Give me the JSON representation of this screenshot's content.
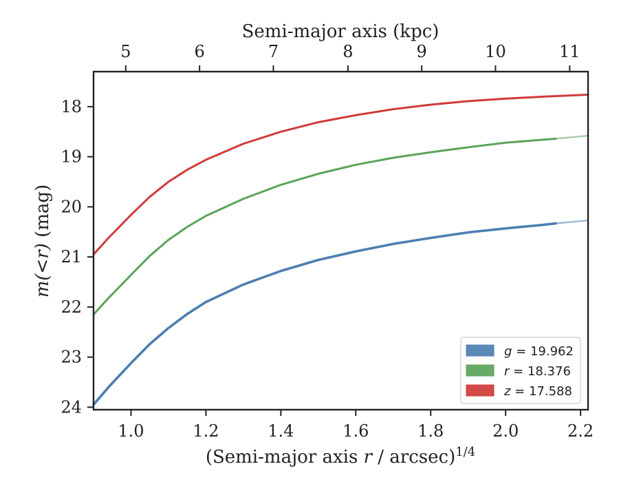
{
  "chart_data": {
    "type": "line",
    "xlabel": "(Semi-major axis r / arcsec)",
    "xlabel_parts": {
      "before": "(Semi-major axis ",
      "var": "r",
      "after": " / arcsec)",
      "sup": "1/4"
    },
    "ylabel": "m(<r) (mag)",
    "ylabel_parts": {
      "math": "m(<r)",
      "unit": " (mag)"
    },
    "top_xlabel": "Semi-major axis (kpc)",
    "xlim": [
      0.9,
      2.22
    ],
    "ylim": [
      24.05,
      17.3
    ],
    "x_ticks": [
      1.0,
      1.2,
      1.4,
      1.6,
      1.8,
      2.0,
      2.2
    ],
    "x_tick_labels": [
      "1.0",
      "1.2",
      "1.4",
      "1.6",
      "1.8",
      "2.0",
      "2.2"
    ],
    "y_ticks": [
      18,
      19,
      20,
      21,
      22,
      23,
      24
    ],
    "y_tick_labels": [
      "18",
      "19",
      "20",
      "21",
      "22",
      "23",
      "24"
    ],
    "top_ticks": [
      {
        "label": "5",
        "x": 0.986
      },
      {
        "label": "6",
        "x": 1.183
      },
      {
        "label": "7",
        "x": 1.38
      },
      {
        "label": "8",
        "x": 1.579
      },
      {
        "label": "9",
        "x": 1.776
      },
      {
        "label": "10",
        "x": 1.973
      },
      {
        "label": "11",
        "x": 2.171
      }
    ],
    "legend_position": "lower right",
    "series": [
      {
        "name": "g = 19.962",
        "legend_var": "g",
        "legend_value": "19.962",
        "color": "#4c7fb0",
        "points": [
          [
            0.9,
            23.95
          ],
          [
            0.94,
            23.6
          ],
          [
            1.0,
            23.12
          ],
          [
            1.05,
            22.74
          ],
          [
            1.1,
            22.42
          ],
          [
            1.15,
            22.14
          ],
          [
            1.2,
            21.9
          ],
          [
            1.3,
            21.55
          ],
          [
            1.4,
            21.28
          ],
          [
            1.5,
            21.06
          ],
          [
            1.6,
            20.89
          ],
          [
            1.7,
            20.74
          ],
          [
            1.8,
            20.62
          ],
          [
            1.9,
            20.51
          ],
          [
            2.0,
            20.43
          ],
          [
            2.1,
            20.36
          ],
          [
            2.134,
            20.33
          ]
        ],
        "extension": [
          [
            2.134,
            20.33
          ],
          [
            2.22,
            20.27
          ]
        ]
      },
      {
        "name": "r = 18.376",
        "legend_var": "r",
        "legend_value": "18.376",
        "color": "#5aa45a",
        "points": [
          [
            0.9,
            22.15
          ],
          [
            0.94,
            21.82
          ],
          [
            1.0,
            21.36
          ],
          [
            1.05,
            20.98
          ],
          [
            1.1,
            20.66
          ],
          [
            1.15,
            20.4
          ],
          [
            1.2,
            20.18
          ],
          [
            1.3,
            19.84
          ],
          [
            1.4,
            19.56
          ],
          [
            1.5,
            19.34
          ],
          [
            1.6,
            19.16
          ],
          [
            1.7,
            19.02
          ],
          [
            1.8,
            18.91
          ],
          [
            1.9,
            18.81
          ],
          [
            2.0,
            18.72
          ],
          [
            2.1,
            18.66
          ],
          [
            2.134,
            18.64
          ]
        ],
        "extension": [
          [
            2.134,
            18.64
          ],
          [
            2.22,
            18.58
          ]
        ]
      },
      {
        "name": "z = 17.588",
        "legend_var": "z",
        "legend_value": "17.588",
        "color": "#d03a3a",
        "points": [
          [
            0.9,
            20.95
          ],
          [
            0.94,
            20.62
          ],
          [
            1.0,
            20.16
          ],
          [
            1.05,
            19.8
          ],
          [
            1.1,
            19.5
          ],
          [
            1.15,
            19.26
          ],
          [
            1.2,
            19.06
          ],
          [
            1.3,
            18.74
          ],
          [
            1.4,
            18.5
          ],
          [
            1.5,
            18.31
          ],
          [
            1.6,
            18.17
          ],
          [
            1.7,
            18.05
          ],
          [
            1.8,
            17.96
          ],
          [
            1.9,
            17.89
          ],
          [
            2.0,
            17.84
          ],
          [
            2.1,
            17.8
          ],
          [
            2.22,
            17.76
          ]
        ],
        "extension": []
      }
    ]
  }
}
